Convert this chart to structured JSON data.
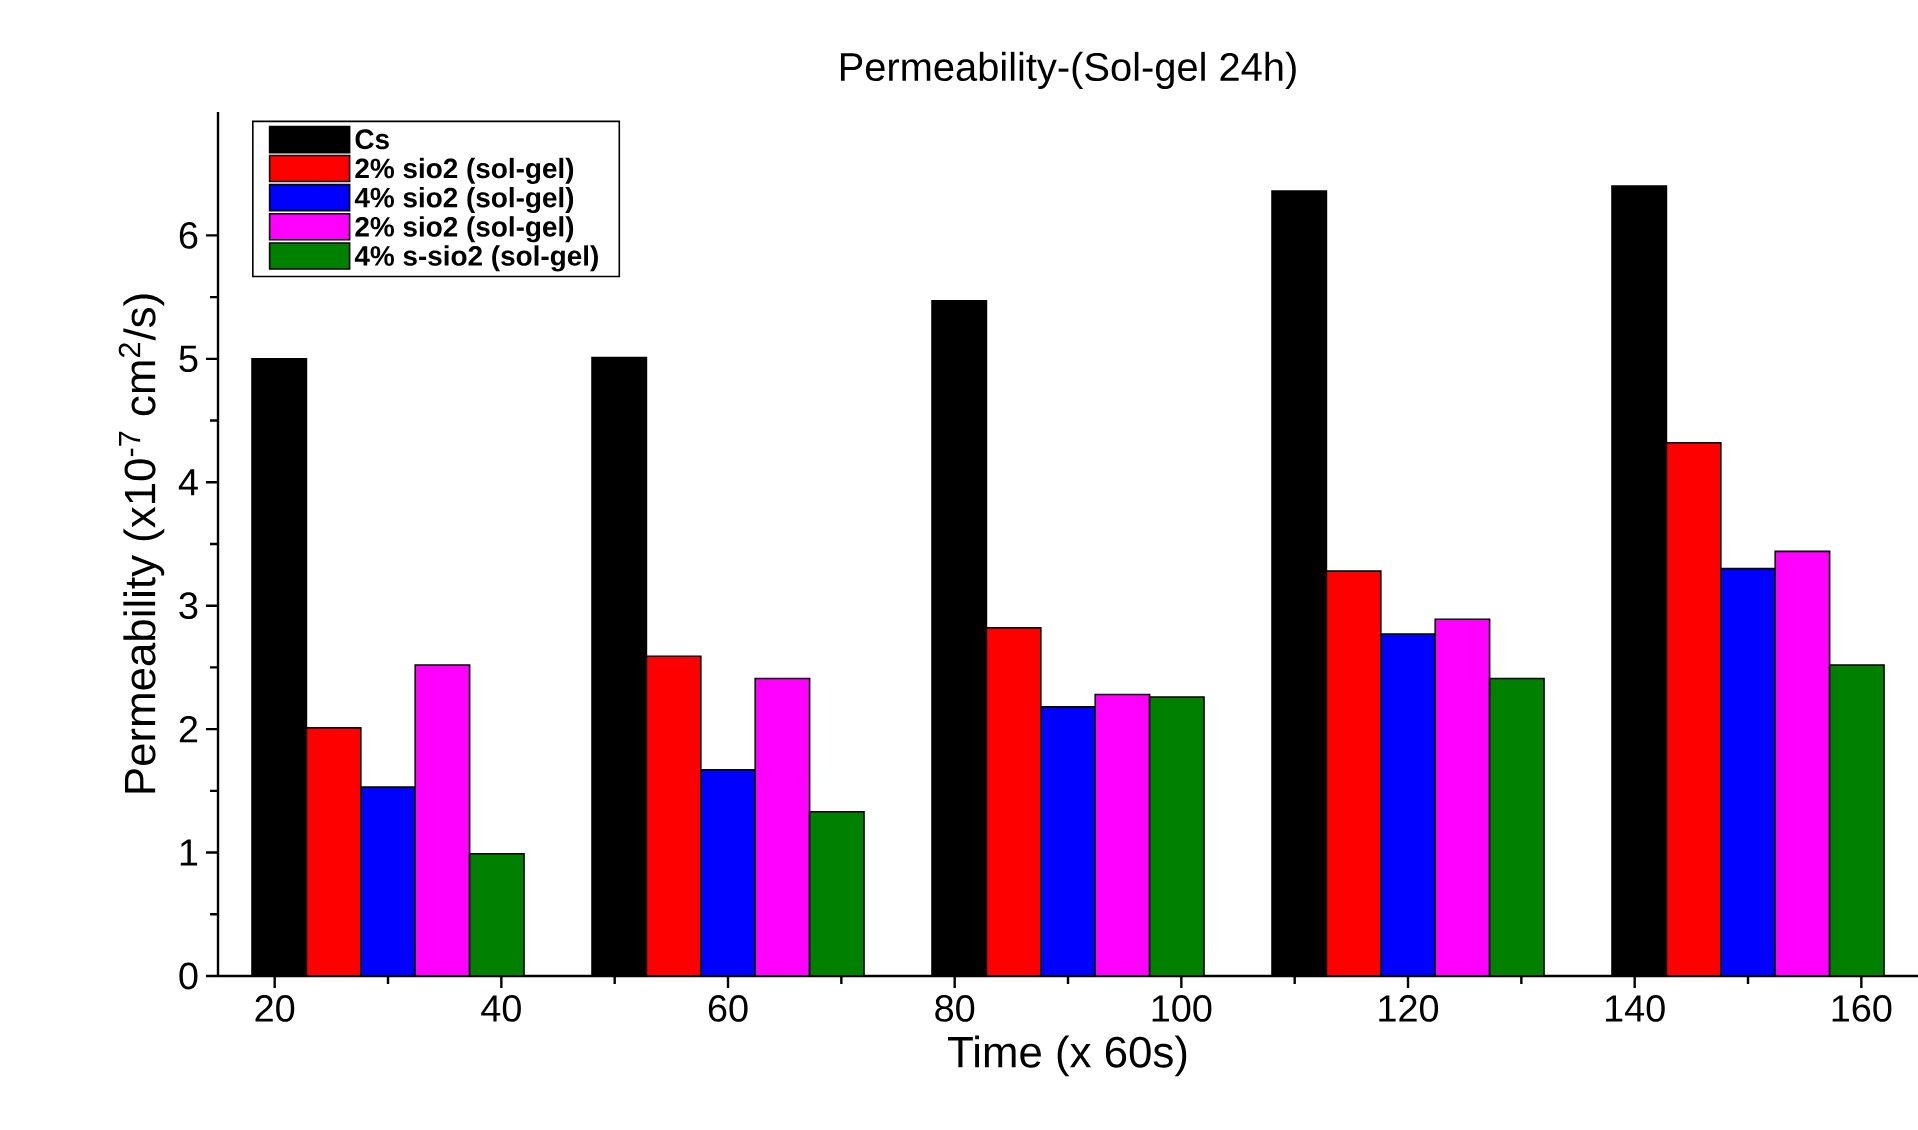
{
  "chart_data": {
    "type": "bar",
    "title": "Permeability-(Sol-gel 24h)",
    "xlabel": "Time (x 60s)",
    "ylabel": "Permeability (x10$^{-7}$ cm$^{2}$/s)",
    "x": [
      30,
      60,
      90,
      120,
      150
    ],
    "series": [
      {
        "name": "Cs",
        "color": "#000000",
        "values": [
          5.0,
          5.01,
          5.47,
          6.36,
          6.4
        ]
      },
      {
        "name": "2% sio2 (sol-gel)",
        "color": "#ff0000",
        "values": [
          2.01,
          2.59,
          2.82,
          3.28,
          4.32
        ]
      },
      {
        "name": "4% sio2 (sol-gel)",
        "color": "#0000ff",
        "values": [
          1.53,
          1.67,
          2.18,
          2.77,
          3.3
        ]
      },
      {
        "name": "2% sio2 (sol-gel)",
        "color": "#ff00ff",
        "values": [
          2.52,
          2.41,
          2.28,
          2.89,
          3.44
        ]
      },
      {
        "name": "4% s-sio2 (sol-gel)",
        "color": "#008000",
        "values": [
          0.99,
          1.33,
          2.26,
          2.41,
          2.52
        ]
      }
    ],
    "xlim": [
      15,
      165
    ],
    "xticks": [
      20,
      40,
      60,
      80,
      100,
      120,
      140,
      160
    ],
    "ylim": [
      0,
      7
    ],
    "yticks": [
      0,
      1,
      2,
      3,
      4,
      5,
      6
    ],
    "grid": false,
    "legend": "top left"
  }
}
